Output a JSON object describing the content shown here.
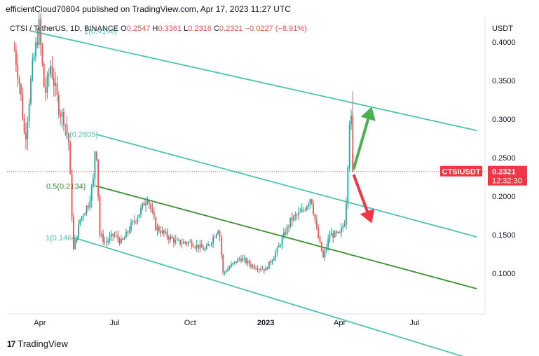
{
  "header": {
    "publisher": "efficientCloud70804 published on TradingView.com, Apr 17, 2023 11:27 UTC"
  },
  "symbol_bar": {
    "symbol": "CTSI / TetherUS, 1D, BINANCE",
    "o_label": "O",
    "o_value": "0.2547",
    "h_label": "H",
    "h_value": "0.3361",
    "l_label": "L",
    "l_value": "0.2316",
    "c_label": "C",
    "c_value": "0.2321",
    "change": "−0.0227 (−8.91%)"
  },
  "footer": {
    "brand": "TradingView",
    "logo_glyph": "17"
  },
  "colors": {
    "up": "#26a69a",
    "down": "#ef5350",
    "channel": "#4fc4b0",
    "midline": "#3a8f2e",
    "green_arrow": "#4caf50",
    "red_arrow": "#f23645",
    "price_tag": "#f23645"
  },
  "chart_data": {
    "type": "candlestick",
    "currency": "USDT",
    "ylim": [
      0.04,
      0.45
    ],
    "y_ticks": [
      "0.4000",
      "0.3500",
      "0.3000",
      "0.2500",
      "0.2000",
      "0.1500",
      "0.1000"
    ],
    "x_ticks": [
      "Apr",
      "Jul",
      "Oct",
      "2023",
      "Apr",
      "Jul"
    ],
    "last_price": {
      "symbol": "CTSIUSDT",
      "value": "0.2321",
      "countdown": "12:32:30"
    },
    "fib_labels": [
      {
        "text": "0(0.2805)",
        "value": 0.2805
      },
      {
        "text": "0.5(0.2134)",
        "value": 0.2134
      },
      {
        "text": "1(0.1464)",
        "value": 0.1464
      },
      {
        "text": "1(0.4146)",
        "value": 0.4146
      }
    ],
    "price_path": [
      [
        "2022-03-01",
        0.39
      ],
      [
        "2022-03-08",
        0.34
      ],
      [
        "2022-03-14",
        0.27
      ],
      [
        "2022-03-22",
        0.36
      ],
      [
        "2022-03-31",
        0.42
      ],
      [
        "2022-04-07",
        0.33
      ],
      [
        "2022-04-14",
        0.37
      ],
      [
        "2022-04-25",
        0.31
      ],
      [
        "2022-05-01",
        0.3
      ],
      [
        "2022-05-06",
        0.27
      ],
      [
        "2022-05-12",
        0.13
      ],
      [
        "2022-05-20",
        0.17
      ],
      [
        "2022-05-30",
        0.19
      ],
      [
        "2022-06-05",
        0.22
      ],
      [
        "2022-06-08",
        0.28
      ],
      [
        "2022-06-13",
        0.15
      ],
      [
        "2022-06-20",
        0.14
      ],
      [
        "2022-06-30",
        0.15
      ],
      [
        "2022-07-10",
        0.14
      ],
      [
        "2022-07-20",
        0.16
      ],
      [
        "2022-08-01",
        0.18
      ],
      [
        "2022-08-10",
        0.2
      ],
      [
        "2022-08-20",
        0.16
      ],
      [
        "2022-09-01",
        0.15
      ],
      [
        "2022-09-15",
        0.14
      ],
      [
        "2022-10-01",
        0.14
      ],
      [
        "2022-10-20",
        0.13
      ],
      [
        "2022-11-05",
        0.16
      ],
      [
        "2022-11-10",
        0.1
      ],
      [
        "2022-11-20",
        0.11
      ],
      [
        "2022-12-01",
        0.12
      ],
      [
        "2022-12-15",
        0.11
      ],
      [
        "2023-01-01",
        0.105
      ],
      [
        "2023-01-15",
        0.13
      ],
      [
        "2023-02-01",
        0.17
      ],
      [
        "2023-02-15",
        0.18
      ],
      [
        "2023-02-25",
        0.2
      ],
      [
        "2023-03-05",
        0.15
      ],
      [
        "2023-03-12",
        0.12
      ],
      [
        "2023-03-20",
        0.15
      ],
      [
        "2023-04-01",
        0.15
      ],
      [
        "2023-04-08",
        0.17
      ],
      [
        "2023-04-12",
        0.27
      ],
      [
        "2023-04-14",
        0.33
      ],
      [
        "2023-04-17",
        0.2321
      ]
    ],
    "channels": [
      {
        "name": "upper-channel",
        "from": [
          "2022-03-20",
          0.4146
        ],
        "to": [
          "2023-09-15",
          0.2852
        ]
      },
      {
        "name": "channel-top",
        "from": [
          "2022-06-08",
          0.2805
        ],
        "to": [
          "2023-09-15",
          0.1472
        ]
      },
      {
        "name": "channel-mid",
        "from": [
          "2022-06-08",
          0.2134
        ],
        "to": [
          "2023-09-15",
          0.08
        ]
      },
      {
        "name": "channel-bottom",
        "from": [
          "2022-05-12",
          0.1464
        ],
        "to": [
          "2023-09-15",
          -0.0133
        ]
      }
    ],
    "arrows": [
      {
        "name": "green-up-arrow",
        "from": [
          "2023-04-18",
          0.235
        ],
        "to": [
          "2023-05-10",
          0.316
        ]
      },
      {
        "name": "red-down-arrow",
        "from": [
          "2023-04-18",
          0.228
        ],
        "to": [
          "2023-05-10",
          0.165
        ]
      }
    ]
  }
}
